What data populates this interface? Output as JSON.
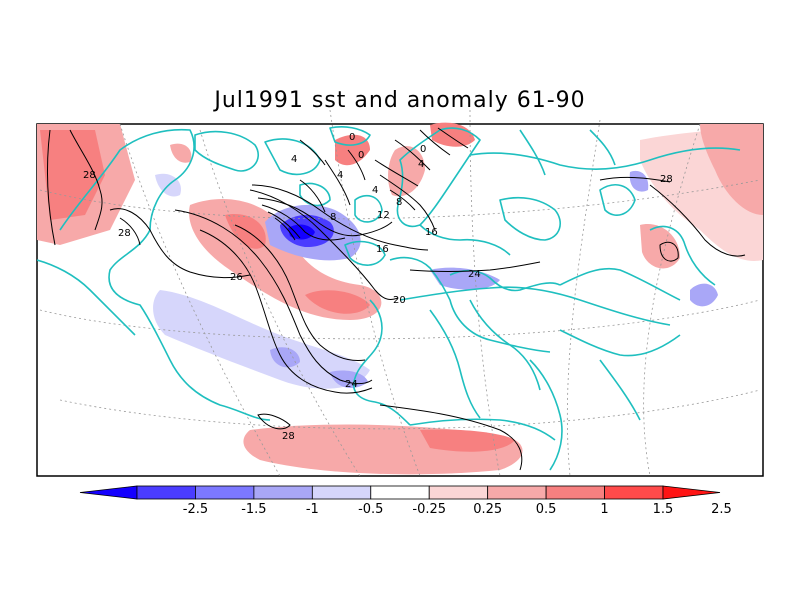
{
  "title": "Jul1991 sst and anomaly 61-90",
  "contour_labels": [
    "28",
    "28",
    "26",
    "24",
    "28",
    "20",
    "16",
    "12",
    "8",
    "8",
    "4",
    "4",
    "0",
    "0",
    "4",
    "4",
    "16",
    "24",
    "28",
    "0"
  ],
  "colorbar": {
    "ticks": [
      "-2.5",
      "-1.5",
      "-1",
      "-0.5",
      "-0.25",
      "0.25",
      "0.5",
      "1",
      "1.5",
      "2.5"
    ],
    "colors": [
      "#1400ff",
      "#4a3cff",
      "#7c78ff",
      "#a9a7f7",
      "#d6d6fb",
      "#ffffff",
      "#fbd6d6",
      "#f7a9a9",
      "#f78080",
      "#ff4a4a",
      "#ff1414"
    ]
  },
  "colors": {
    "coastline": "#1fbfbf",
    "contour": "#000000"
  }
}
